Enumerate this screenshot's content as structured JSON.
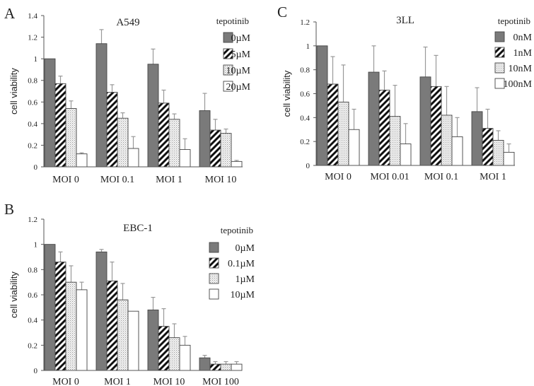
{
  "figure": {
    "panel_labels": [
      "A",
      "B",
      "C"
    ]
  },
  "colors": {
    "solid": "#7a7a7a",
    "stroke": "#444444",
    "axis": "#555555",
    "error": "#999999"
  },
  "chart_data": [
    {
      "panel": "A",
      "type": "bar",
      "title": "A549",
      "xlabel": "",
      "ylabel": "cell viability",
      "ylim": [
        0,
        1.4
      ],
      "yticks": [
        0,
        0.2,
        0.4,
        0.6,
        0.8,
        1,
        1.2,
        1.4
      ],
      "ytick_labels": [
        "0",
        "0.2",
        "0.4",
        "0.6",
        "0.8",
        "1",
        "1.2",
        "1.4"
      ],
      "categories": [
        "MOI 0",
        "MOI 0.1",
        "MOI 1",
        "MOI 10"
      ],
      "legend_title": "tepotinib",
      "legend_position": "top-right",
      "series": [
        {
          "name": "0µM",
          "pattern": "solid",
          "values": [
            1.0,
            1.14,
            0.95,
            0.52
          ],
          "error_top": [
            null,
            1.27,
            1.09,
            0.68
          ]
        },
        {
          "name": "5µM",
          "pattern": "hatch",
          "values": [
            0.77,
            0.69,
            0.59,
            0.34
          ],
          "error_top": [
            0.84,
            0.76,
            0.71,
            0.44
          ]
        },
        {
          "name": "10µM",
          "pattern": "dots",
          "values": [
            0.54,
            0.45,
            0.44,
            0.31
          ],
          "error_top": [
            0.61,
            0.5,
            0.49,
            0.35
          ]
        },
        {
          "name": "20µM",
          "pattern": "white",
          "values": [
            0.12,
            0.17,
            0.16,
            0.05
          ],
          "error_top": [
            0.13,
            0.28,
            0.26,
            0.06
          ]
        }
      ]
    },
    {
      "panel": "B",
      "type": "bar",
      "title": "EBC-1",
      "xlabel": "",
      "ylabel": "cell viability",
      "ylim": [
        0,
        1.2
      ],
      "yticks": [
        0,
        0.2,
        0.4,
        0.6,
        0.8,
        1,
        1.2
      ],
      "ytick_labels": [
        "0",
        "0.2",
        "0.4",
        "0.6",
        "0.8",
        "1",
        "1.2"
      ],
      "categories": [
        "MOI 0",
        "MOI 1",
        "MOI 10",
        "MOI 100"
      ],
      "legend_title": "tepotinib",
      "legend_position": "top-right",
      "series": [
        {
          "name": "0µM",
          "pattern": "solid",
          "values": [
            1.0,
            0.94,
            0.48,
            0.1
          ],
          "error_top": [
            null,
            0.96,
            0.58,
            0.12
          ]
        },
        {
          "name": "0.1µM",
          "pattern": "hatch",
          "values": [
            0.86,
            0.71,
            0.35,
            0.05
          ],
          "error_top": [
            0.94,
            0.86,
            0.49,
            0.07
          ]
        },
        {
          "name": "1µM",
          "pattern": "dots",
          "values": [
            0.7,
            0.56,
            0.26,
            0.05
          ],
          "error_top": [
            0.83,
            0.69,
            0.37,
            0.07
          ]
        },
        {
          "name": "10µM",
          "pattern": "white",
          "values": [
            0.64,
            0.47,
            0.2,
            0.05
          ],
          "error_top": [
            0.7,
            0.47,
            0.27,
            0.07
          ]
        }
      ]
    },
    {
      "panel": "C",
      "type": "bar",
      "title": "3LL",
      "xlabel": "",
      "ylabel": "cell viability",
      "ylim": [
        0,
        1.2
      ],
      "yticks": [
        0,
        0.2,
        0.4,
        0.6,
        0.8,
        1,
        1.2
      ],
      "ytick_labels": [
        "0",
        "0.2",
        "0.4",
        "0.6",
        "0.8",
        "1",
        "1.2"
      ],
      "categories": [
        "MOI 0",
        "MOI 0.01",
        "MOI 0.1",
        "MOI 1"
      ],
      "legend_title": "tepotinib",
      "legend_position": "top-right",
      "series": [
        {
          "name": "0nM",
          "pattern": "solid",
          "values": [
            1.0,
            0.78,
            0.74,
            0.45
          ],
          "error_top": [
            null,
            1.0,
            0.99,
            0.65
          ]
        },
        {
          "name": "1nM",
          "pattern": "hatch",
          "values": [
            0.68,
            0.63,
            0.66,
            0.31
          ],
          "error_top": [
            0.91,
            0.79,
            0.92,
            0.47
          ]
        },
        {
          "name": "10nM",
          "pattern": "dots",
          "values": [
            0.53,
            0.41,
            0.42,
            0.21
          ],
          "error_top": [
            0.84,
            0.67,
            0.66,
            0.29
          ]
        },
        {
          "name": "100nM",
          "pattern": "white",
          "values": [
            0.3,
            0.18,
            0.24,
            0.11
          ],
          "error_top": [
            0.47,
            0.35,
            0.4,
            0.18
          ]
        }
      ]
    }
  ]
}
